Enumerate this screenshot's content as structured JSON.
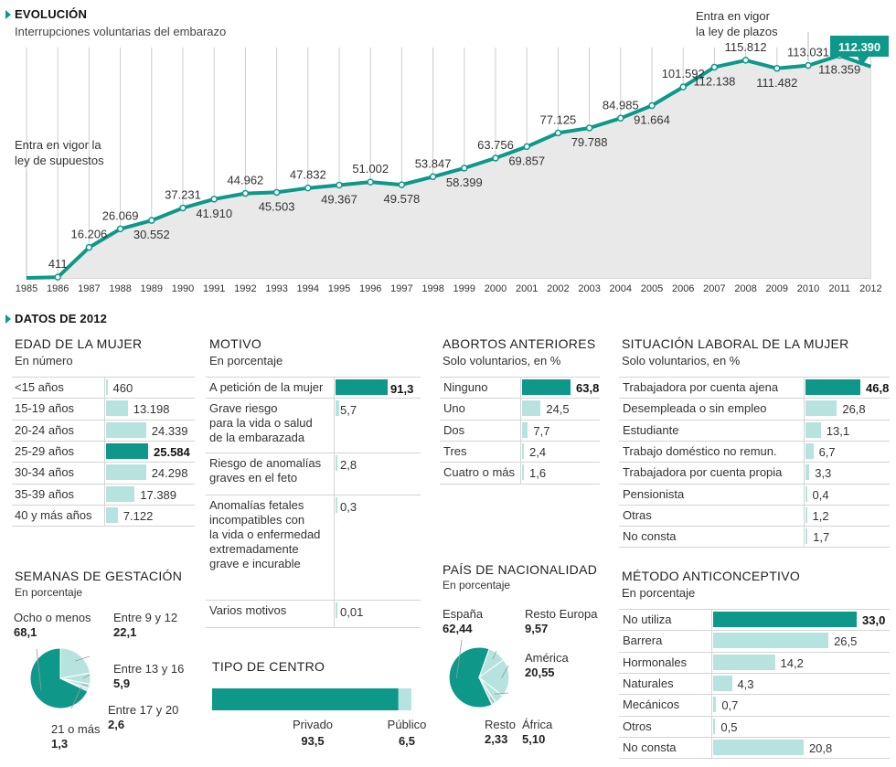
{
  "evolucion": {
    "title": "EVOLUCIÓN",
    "subtitle": "Interrupciones voluntarias del embarazo",
    "annotation_supuestos": [
      "Entra en vigor la",
      "ley de supuestos"
    ],
    "annotation_plazos": [
      "Entra en vigor",
      "la ley de plazos"
    ],
    "last_value_badge": "112.390"
  },
  "datos": {
    "title": "DATOS DE 2012"
  },
  "colors": {
    "accent": "#0e9889",
    "bar_light": "#b7e3df",
    "area": "#e9e9e9",
    "grid": "#cccccc"
  },
  "chart_data": [
    {
      "type": "line",
      "title": "EVOLUCIÓN",
      "subtitle": "Interrupciones voluntarias del embarazo",
      "x": [
        "1985",
        "1986",
        "1987",
        "1988",
        "1989",
        "1990",
        "1991",
        "1992",
        "1993",
        "1994",
        "1995",
        "1996",
        "1997",
        "1998",
        "1999",
        "2000",
        "2001",
        "2002",
        "2003",
        "2004",
        "2005",
        "2006",
        "2007",
        "2008",
        "2009",
        "2010",
        "2011",
        "2012"
      ],
      "values": [
        null,
        411,
        16206,
        26069,
        30552,
        37231,
        41910,
        44962,
        45503,
        47832,
        49367,
        51002,
        49578,
        53847,
        58399,
        63756,
        69857,
        77125,
        79788,
        84985,
        91664,
        101592,
        112138,
        115812,
        111482,
        113031,
        118359,
        112390
      ],
      "labels": [
        "",
        "411",
        "16.206",
        "26.069",
        "30.552",
        "37.231",
        "41.910",
        "44.962",
        "45.503",
        "47.832",
        "49.367",
        "51.002",
        "49.578",
        "53.847",
        "58.399",
        "63.756",
        "69.857",
        "77.125",
        "79.788",
        "84.985",
        "91.664",
        "101.592",
        "112.138",
        "115.812",
        "111.482",
        "113.031",
        "118.359",
        "112.390"
      ],
      "label_pos": [
        "",
        "above",
        "above",
        "above",
        "below",
        "above",
        "below",
        "above",
        "below",
        "above",
        "below",
        "above",
        "below",
        "above",
        "below",
        "above",
        "below",
        "above",
        "below",
        "above",
        "below",
        "above",
        "below",
        "above",
        "below",
        "above",
        "below",
        ""
      ],
      "ylim": [
        0,
        125000
      ],
      "grid": "vertical"
    },
    {
      "type": "bar",
      "title": "EDAD DE LA MUJER",
      "subtitle": "En número",
      "categories": [
        "<15 años",
        "15-19 años",
        "20-24 años",
        "25-29 años",
        "30-34 años",
        "35-39 años",
        "40 y más años"
      ],
      "values": [
        460,
        13198,
        24339,
        25584,
        24298,
        17389,
        7122
      ],
      "labels": [
        "460",
        "13.198",
        "24.339",
        "25.584",
        "24.298",
        "17.389",
        "7.122"
      ],
      "highlight": 3
    },
    {
      "type": "bar",
      "title": "MOTIVO",
      "subtitle": "En porcentaje",
      "categories": [
        [
          "A petición de la mujer"
        ],
        [
          "Grave riesgo",
          "para la vida o salud",
          "de la embarazada"
        ],
        [
          "Riesgo de anomalías",
          "graves en el feto"
        ],
        [
          "Anomalías fetales",
          "incompatibles con",
          "la vida o enfermedad",
          "extremadamente",
          "grave e incurable"
        ],
        [
          "Varios motivos"
        ]
      ],
      "values": [
        91.3,
        5.7,
        2.8,
        0.3,
        0.01
      ],
      "labels": [
        "91,3",
        "5,7",
        "2,8",
        "0,3",
        "0,01"
      ],
      "highlight": 0
    },
    {
      "type": "bar",
      "title": "ABORTOS ANTERIORES",
      "subtitle": "Solo voluntarios, en %",
      "categories": [
        "Ninguno",
        "Uno",
        "Dos",
        "Tres",
        "Cuatro o más"
      ],
      "values": [
        63.8,
        24.5,
        7.7,
        2.4,
        1.6
      ],
      "labels": [
        "63,8",
        "24,5",
        "7,7",
        "2,4",
        "1,6"
      ],
      "highlight": 0
    },
    {
      "type": "bar",
      "title": "SITUACIÓN LABORAL DE LA MUJER",
      "subtitle": "Solo voluntarios, en %",
      "categories": [
        "Trabajadora por cuenta ajena",
        "Desempleada o sin empleo",
        "Estudiante",
        "Trabajo doméstico no remun.",
        "Trabajadora por cuenta propia",
        "Pensionista",
        "Otras",
        "No consta"
      ],
      "values": [
        46.8,
        26.8,
        13.1,
        6.7,
        3.3,
        0.4,
        1.2,
        1.7
      ],
      "labels": [
        "46,8",
        "26,8",
        "13,1",
        "6,7",
        "3,3",
        "0,4",
        "1,2",
        "1,7"
      ],
      "highlight": 0
    },
    {
      "type": "bar",
      "title": "MÉTODO ANTICONCEPTIVO",
      "subtitle": "En porcentaje",
      "categories": [
        "No utiliza",
        "Barrera",
        "Hormonales",
        "Naturales",
        "Mecánicos",
        "Otros",
        "No consta"
      ],
      "values": [
        33.0,
        26.5,
        14.2,
        4.3,
        0.7,
        0.5,
        20.8
      ],
      "labels": [
        "33,0",
        "26,5",
        "14,2",
        "4,3",
        "0,7",
        "0,5",
        "20,8"
      ],
      "highlight": 0
    },
    {
      "type": "pie",
      "title": "SEMANAS DE GESTACIÓN",
      "subtitle": "En porcentaje",
      "categories": [
        "Ocho o menos",
        "Entre 9 y 12",
        "Entre 13 y 16",
        "Entre 17 y 20",
        "21 o más"
      ],
      "values": [
        68.1,
        22.1,
        5.9,
        2.6,
        1.3
      ],
      "labels": [
        "68,1",
        "22,1",
        "5,9",
        "2,6",
        "1,3"
      ]
    },
    {
      "type": "pie",
      "title": "PAÍS DE NACIONALIDAD",
      "subtitle": "En porcentaje",
      "categories": [
        "España",
        "Resto Europa",
        "América",
        "África",
        "Resto"
      ],
      "values": [
        62.44,
        9.57,
        20.55,
        5.1,
        2.33
      ],
      "labels": [
        "62,44",
        "9,57",
        "20,55",
        "5,10",
        "2,33"
      ]
    },
    {
      "type": "bar",
      "title": "TIPO DE CENTRO",
      "categories": [
        "Privado",
        "Público"
      ],
      "values": [
        93.5,
        6.5
      ],
      "labels": [
        "93,5",
        "6,5"
      ],
      "stacked": true
    }
  ]
}
